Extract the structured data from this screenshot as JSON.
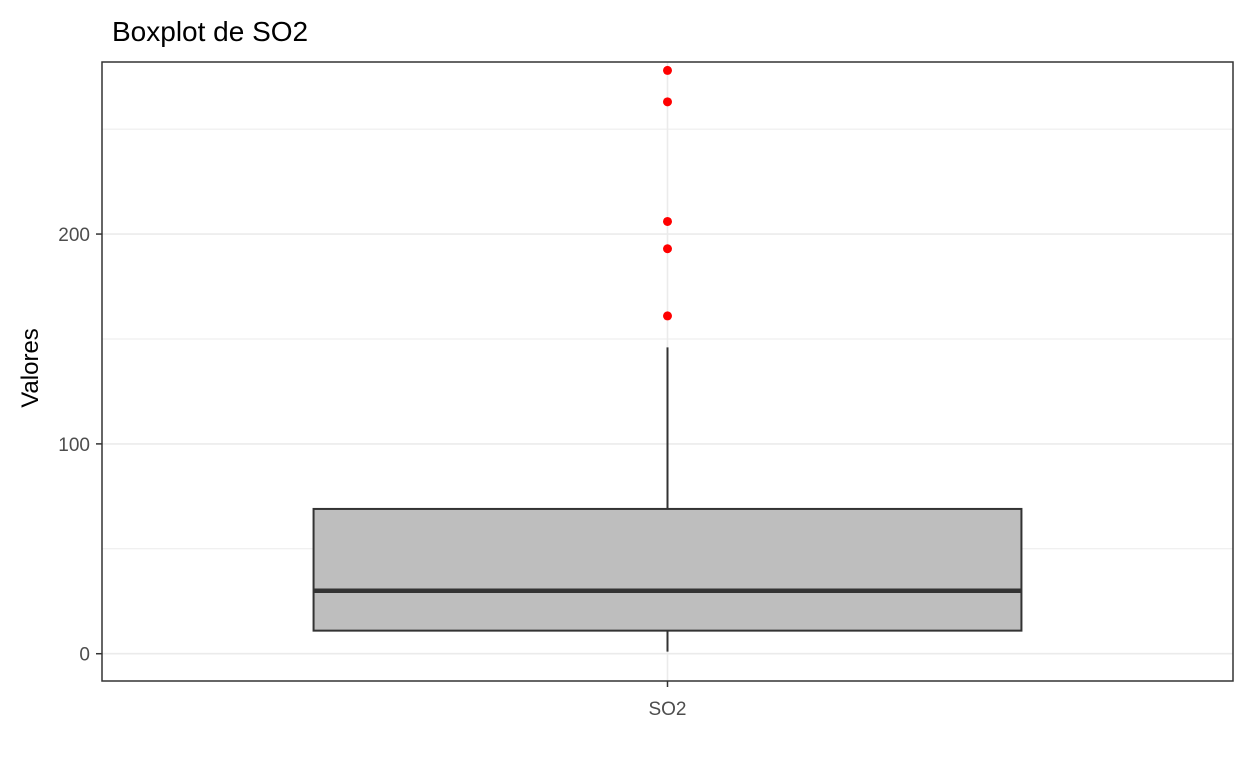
{
  "chart_data": {
    "type": "boxplot",
    "title": "Boxplot de SO2",
    "xlabel": "",
    "ylabel": "Valores",
    "ylim": [
      -13,
      282
    ],
    "y_ticks": [
      0,
      100,
      200
    ],
    "y_tick_labels": [
      "0",
      "100",
      "200"
    ],
    "grid": true,
    "legend": "none",
    "categories": [
      "SO2"
    ],
    "boxes": [
      {
        "category": "SO2",
        "whisker_low": 1,
        "q1": 11,
        "median": 30,
        "q3": 69,
        "whisker_high": 146,
        "outliers": [
          161,
          193,
          206,
          263,
          278
        ]
      }
    ],
    "colors": {
      "box_fill": "#bebebe",
      "box_stroke": "#333333",
      "outlier": "#ff0000",
      "grid": "#ebebeb",
      "panel_border": "#333333",
      "tick_text": "#4d4d4d",
      "title_text": "#000000"
    }
  }
}
